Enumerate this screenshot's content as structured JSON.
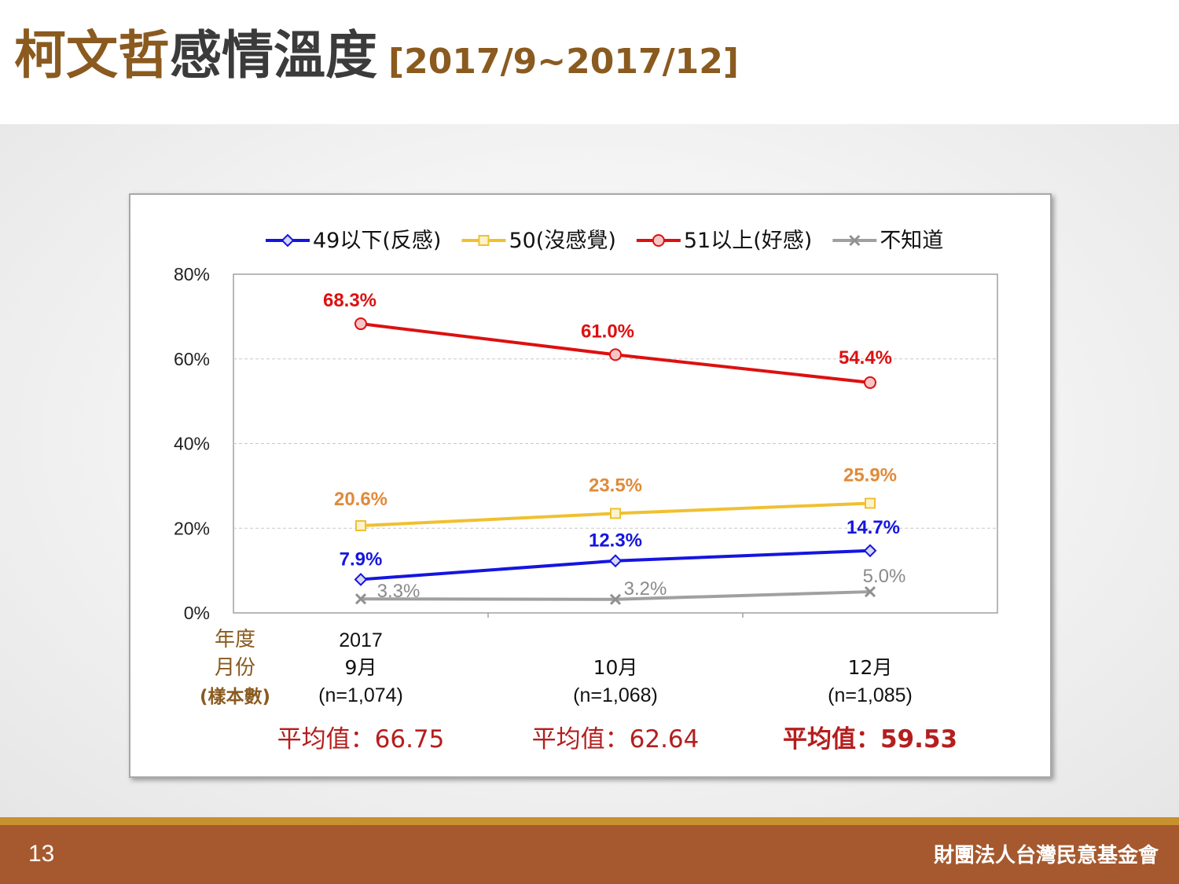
{
  "title": {
    "part1": "柯文哲",
    "part2": "感情溫度",
    "part3": "[2017/9~2017/12]"
  },
  "footer": {
    "page_number": "13",
    "organization": "財團法人台灣民意基金會"
  },
  "colors": {
    "brand_brown": "#8a5a1f",
    "footer_brown": "#a6592e",
    "footer_stripe": "#c9902e",
    "average_red": "#b41e1e"
  },
  "row_labels": [
    "年度",
    "月份",
    "(樣本數)"
  ],
  "averages": [
    "平均值：66.75",
    "平均值：62.64",
    "平均值：59.53"
  ],
  "chart_data": {
    "type": "line",
    "ylim": [
      0,
      80
    ],
    "yticks": [
      "0%",
      "20%",
      "40%",
      "60%",
      "80%"
    ],
    "categories": [
      {
        "year": "2017",
        "month": "9月",
        "n": "(n=1,074)"
      },
      {
        "year": "",
        "month": "10月",
        "n": "(n=1,068)"
      },
      {
        "year": "",
        "month": "12月",
        "n": "(n=1,085)"
      }
    ],
    "legend_position": "top",
    "grid": true,
    "series": [
      {
        "name": "49以下(反感)",
        "color": "#1515e0",
        "marker": "diamond",
        "values": [
          7.9,
          12.3,
          14.7
        ],
        "labels": [
          "7.9%",
          "12.3%",
          "14.7%"
        ],
        "label_color": "#1515e0"
      },
      {
        "name": "50(沒感覺)",
        "color": "#f0c030",
        "marker": "square",
        "values": [
          20.6,
          23.5,
          25.9
        ],
        "labels": [
          "20.6%",
          "23.5%",
          "25.9%"
        ],
        "label_color": "#e08a3a"
      },
      {
        "name": "51以上(好感)",
        "color": "#dd1010",
        "marker": "circle",
        "values": [
          68.3,
          61.0,
          54.4
        ],
        "labels": [
          "68.3%",
          "61.0%",
          "54.4%"
        ],
        "label_color": "#dd1010"
      },
      {
        "name": "不知道",
        "color": "#a0a0a0",
        "marker": "x",
        "values": [
          3.3,
          3.2,
          5.0
        ],
        "labels": [
          "3.3%",
          "3.2%",
          "5.0%"
        ],
        "label_color": "#8a8a8a"
      }
    ]
  }
}
